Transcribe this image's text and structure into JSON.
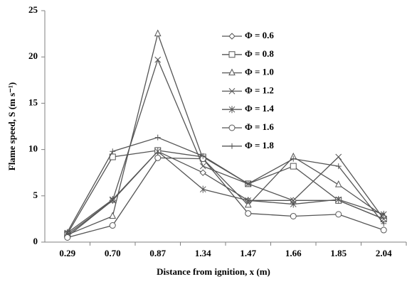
{
  "chart_data": {
    "type": "line",
    "y_label": "Flame speed, S (m s⁻¹)",
    "x_label": "Distance from ignition, x (m)",
    "categories": [
      "0.29",
      "0.70",
      "0.87",
      "1.34",
      "1.47",
      "1.66",
      "1.85",
      "2.04"
    ],
    "ylim": [
      0,
      25
    ],
    "yticks": [
      0,
      5,
      10,
      15,
      20,
      25
    ],
    "series": [
      {
        "name": "Φ = 0.6",
        "color": "#555555",
        "marker": "diamond",
        "values": [
          0.6,
          4.5,
          9.8,
          7.5,
          4.5,
          4.5,
          4.5,
          2.5
        ]
      },
      {
        "name": "Φ = 0.8",
        "color": "#555555",
        "marker": "square",
        "values": [
          0.9,
          9.2,
          9.9,
          9.2,
          6.3,
          8.2,
          4.5,
          2.5
        ]
      },
      {
        "name": "Φ = 1.0",
        "color": "#555555",
        "marker": "triangle",
        "values": [
          0.8,
          2.8,
          22.5,
          9.0,
          4.0,
          9.2,
          6.2,
          2.8
        ]
      },
      {
        "name": "Φ = 1.2",
        "color": "#555555",
        "marker": "x",
        "values": [
          0.8,
          4.5,
          19.7,
          8.2,
          6.3,
          4.5,
          9.2,
          2.5
        ]
      },
      {
        "name": "Φ = 1.4",
        "color": "#555555",
        "marker": "asterisk",
        "values": [
          1.0,
          4.6,
          9.8,
          5.7,
          4.5,
          4.1,
          4.6,
          3.0
        ]
      },
      {
        "name": "Φ = 1.6",
        "color": "#555555",
        "marker": "circle",
        "values": [
          0.5,
          1.8,
          9.1,
          9.0,
          3.1,
          2.8,
          3.0,
          1.3
        ]
      },
      {
        "name": "Φ = 1.8",
        "color": "#555555",
        "marker": "plus",
        "values": [
          1.1,
          9.8,
          11.3,
          9.3,
          6.3,
          9.0,
          8.2,
          2.0
        ]
      }
    ]
  }
}
